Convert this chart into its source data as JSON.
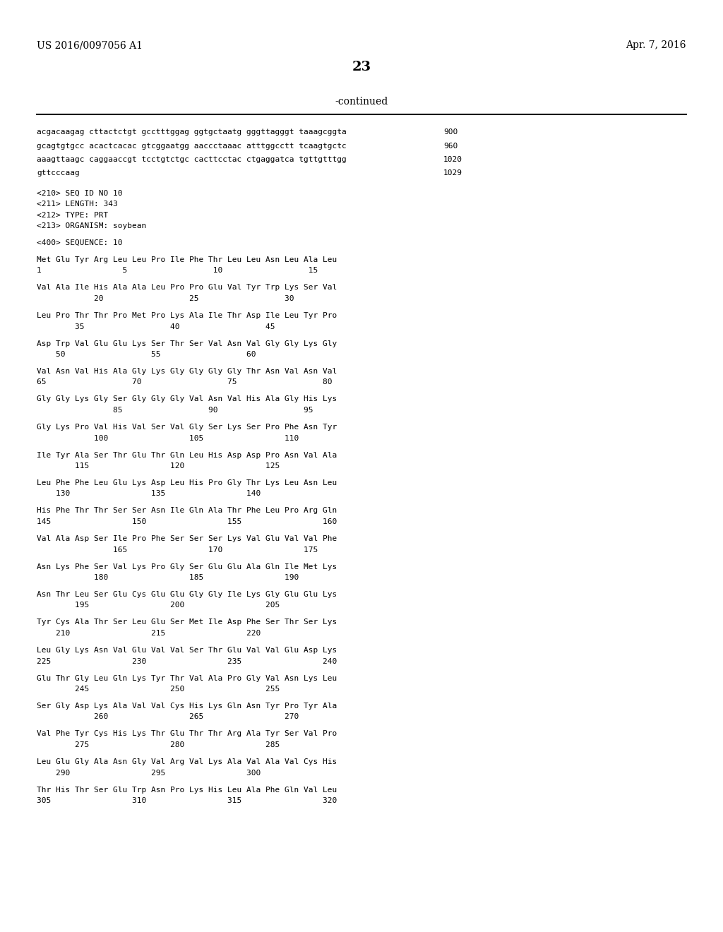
{
  "background_color": "#ffffff",
  "header_left": "US 2016/0097056 A1",
  "header_right": "Apr. 7, 2016",
  "page_number": "23",
  "continued_text": "-continued",
  "fig_width": 10.24,
  "fig_height": 13.2,
  "dpi": 100,
  "content_lines": [
    {
      "type": "seq",
      "text": "acgacaagag cttactctgt gcctttggag ggtgctaatg gggttagggt taaagcggta",
      "num": "900"
    },
    {
      "type": "seq",
      "text": "gcagtgtgcc acactcacac gtcggaatgg aaccctaaac atttggcctt tcaagtgctc",
      "num": "960"
    },
    {
      "type": "seq",
      "text": "aaagttaagc caggaaccgt tcctgtctgc cacttcctac ctgaggatca tgttgtttgg",
      "num": "1020"
    },
    {
      "type": "seq",
      "text": "gttcccaag",
      "num": "1029"
    },
    {
      "type": "blank"
    },
    {
      "type": "meta",
      "text": "<210> SEQ ID NO 10"
    },
    {
      "type": "meta",
      "text": "<211> LENGTH: 343"
    },
    {
      "type": "meta",
      "text": "<212> TYPE: PRT"
    },
    {
      "type": "meta",
      "text": "<213> ORGANISM: soybean"
    },
    {
      "type": "blank"
    },
    {
      "type": "meta",
      "text": "<400> SEQUENCE: 10"
    },
    {
      "type": "blank"
    },
    {
      "type": "aa",
      "text": "Met Glu Tyr Arg Leu Leu Pro Ile Phe Thr Leu Leu Asn Leu Ala Leu"
    },
    {
      "type": "pos",
      "text": "1                 5                  10                  15"
    },
    {
      "type": "blank"
    },
    {
      "type": "aa",
      "text": "Val Ala Ile His Ala Ala Leu Pro Pro Glu Val Tyr Trp Lys Ser Val"
    },
    {
      "type": "pos",
      "text": "            20                  25                  30"
    },
    {
      "type": "blank"
    },
    {
      "type": "aa",
      "text": "Leu Pro Thr Thr Pro Met Pro Lys Ala Ile Thr Asp Ile Leu Tyr Pro"
    },
    {
      "type": "pos",
      "text": "        35                  40                  45"
    },
    {
      "type": "blank"
    },
    {
      "type": "aa",
      "text": "Asp Trp Val Glu Glu Lys Ser Thr Ser Val Asn Val Gly Gly Lys Gly"
    },
    {
      "type": "pos",
      "text": "    50                  55                  60"
    },
    {
      "type": "blank"
    },
    {
      "type": "aa",
      "text": "Val Asn Val His Ala Gly Lys Gly Gly Gly Gly Thr Asn Val Asn Val"
    },
    {
      "type": "pos",
      "text": "65                  70                  75                  80"
    },
    {
      "type": "blank"
    },
    {
      "type": "aa",
      "text": "Gly Gly Lys Gly Ser Gly Gly Gly Val Asn Val His Ala Gly His Lys"
    },
    {
      "type": "pos",
      "text": "                85                  90                  95"
    },
    {
      "type": "blank"
    },
    {
      "type": "aa",
      "text": "Gly Lys Pro Val His Val Ser Val Gly Ser Lys Ser Pro Phe Asn Tyr"
    },
    {
      "type": "pos",
      "text": "            100                 105                 110"
    },
    {
      "type": "blank"
    },
    {
      "type": "aa",
      "text": "Ile Tyr Ala Ser Thr Glu Thr Gln Leu His Asp Asp Pro Asn Val Ala"
    },
    {
      "type": "pos",
      "text": "        115                 120                 125"
    },
    {
      "type": "blank"
    },
    {
      "type": "aa",
      "text": "Leu Phe Phe Leu Glu Lys Asp Leu His Pro Gly Thr Lys Leu Asn Leu"
    },
    {
      "type": "pos",
      "text": "    130                 135                 140"
    },
    {
      "type": "blank"
    },
    {
      "type": "aa",
      "text": "His Phe Thr Thr Ser Ser Asn Ile Gln Ala Thr Phe Leu Pro Arg Gln"
    },
    {
      "type": "pos",
      "text": "145                 150                 155                 160"
    },
    {
      "type": "blank"
    },
    {
      "type": "aa",
      "text": "Val Ala Asp Ser Ile Pro Phe Ser Ser Ser Lys Val Glu Val Val Phe"
    },
    {
      "type": "pos",
      "text": "                165                 170                 175"
    },
    {
      "type": "blank"
    },
    {
      "type": "aa",
      "text": "Asn Lys Phe Ser Val Lys Pro Gly Ser Glu Glu Ala Gln Ile Met Lys"
    },
    {
      "type": "pos",
      "text": "            180                 185                 190"
    },
    {
      "type": "blank"
    },
    {
      "type": "aa",
      "text": "Asn Thr Leu Ser Glu Cys Glu Glu Gly Gly Ile Lys Gly Glu Glu Lys"
    },
    {
      "type": "pos",
      "text": "        195                 200                 205"
    },
    {
      "type": "blank"
    },
    {
      "type": "aa",
      "text": "Tyr Cys Ala Thr Ser Leu Glu Ser Met Ile Asp Phe Ser Thr Ser Lys"
    },
    {
      "type": "pos",
      "text": "    210                 215                 220"
    },
    {
      "type": "blank"
    },
    {
      "type": "aa",
      "text": "Leu Gly Lys Asn Val Glu Val Val Ser Thr Glu Val Val Glu Asp Lys"
    },
    {
      "type": "pos",
      "text": "225                 230                 235                 240"
    },
    {
      "type": "blank"
    },
    {
      "type": "aa",
      "text": "Glu Thr Gly Leu Gln Lys Tyr Thr Val Ala Pro Gly Val Asn Lys Leu"
    },
    {
      "type": "pos",
      "text": "        245                 250                 255"
    },
    {
      "type": "blank"
    },
    {
      "type": "aa",
      "text": "Ser Gly Asp Lys Ala Val Val Cys His Lys Gln Asn Tyr Pro Tyr Ala"
    },
    {
      "type": "pos",
      "text": "            260                 265                 270"
    },
    {
      "type": "blank"
    },
    {
      "type": "aa",
      "text": "Val Phe Tyr Cys His Lys Thr Glu Thr Thr Arg Ala Tyr Ser Val Pro"
    },
    {
      "type": "pos",
      "text": "        275                 280                 285"
    },
    {
      "type": "blank"
    },
    {
      "type": "aa",
      "text": "Leu Glu Gly Ala Asn Gly Val Arg Val Lys Ala Val Ala Val Cys His"
    },
    {
      "type": "pos",
      "text": "    290                 295                 300"
    },
    {
      "type": "blank"
    },
    {
      "type": "aa",
      "text": "Thr His Thr Ser Glu Trp Asn Pro Lys His Leu Ala Phe Gln Val Leu"
    },
    {
      "type": "pos",
      "text": "305                 310                 315                 320"
    }
  ]
}
